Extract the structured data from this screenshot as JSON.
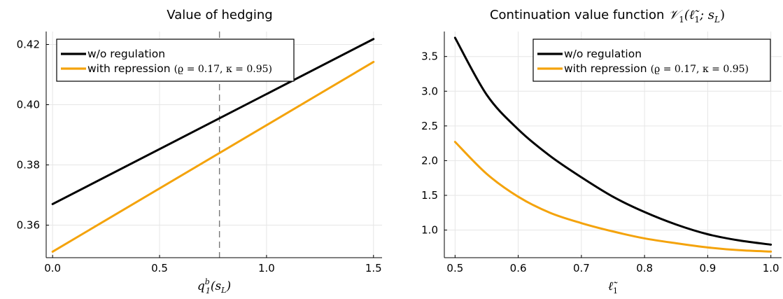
{
  "chart_data": [
    {
      "type": "line",
      "title": "Value of hedging",
      "xlabel": "q_1^b(s_L)",
      "ylabel": "",
      "xlim": [
        -0.03,
        1.54
      ],
      "ylim": [
        0.3492,
        0.4243
      ],
      "xticks": [
        0.0,
        0.5,
        1.0,
        1.5
      ],
      "xtick_labels": [
        "0.0",
        "0.5",
        "1.0",
        "1.5"
      ],
      "yticks": [
        0.36,
        0.38,
        0.4,
        0.42
      ],
      "ytick_labels": [
        "0.36",
        "0.38",
        "0.40",
        "0.42"
      ],
      "grid": true,
      "legend": "top-left",
      "vline": 0.78,
      "series": [
        {
          "name": "w/o regulation",
          "name_math": "",
          "color": "#000000",
          "x": [
            0.0,
            1.5
          ],
          "y": [
            0.367,
            0.4218
          ]
        },
        {
          "name": "with repression",
          "name_math": "(ϱ = 0.17, κ = 0.95)",
          "color": "#f4a30c",
          "x": [
            0.0,
            1.5
          ],
          "y": [
            0.3512,
            0.4142
          ]
        }
      ]
    },
    {
      "type": "line",
      "title": "Continuation value function 𝒱₁(ℓ̃₁; s_L)",
      "xlabel": "ℓ̃₁",
      "ylabel": "",
      "xlim": [
        0.483,
        1.017
      ],
      "ylim": [
        0.602,
        3.86
      ],
      "xticks": [
        0.5,
        0.6,
        0.7,
        0.8,
        0.9,
        1.0
      ],
      "xtick_labels": [
        "0.5",
        "0.6",
        "0.7",
        "0.8",
        "0.9",
        "1.0"
      ],
      "yticks": [
        1.0,
        1.5,
        2.0,
        2.5,
        3.0,
        3.5
      ],
      "ytick_labels": [
        "1.0",
        "1.5",
        "2.0",
        "2.5",
        "3.0",
        "3.5"
      ],
      "grid": true,
      "legend": "top-right",
      "series": [
        {
          "name": "w/o regulation",
          "name_math": "",
          "color": "#000000",
          "x": [
            0.5,
            0.55,
            0.6,
            0.65,
            0.7,
            0.75,
            0.8,
            0.85,
            0.9,
            0.95,
            1.0
          ],
          "y": [
            3.77,
            2.95,
            2.45,
            2.07,
            1.76,
            1.48,
            1.26,
            1.08,
            0.94,
            0.85,
            0.79
          ]
        },
        {
          "name": "with repression",
          "name_math": "(ϱ = 0.17, κ = 0.95)",
          "color": "#f4a30c",
          "x": [
            0.5,
            0.55,
            0.6,
            0.65,
            0.7,
            0.75,
            0.8,
            0.85,
            0.9,
            0.95,
            1.0
          ],
          "y": [
            2.27,
            1.81,
            1.48,
            1.25,
            1.1,
            0.98,
            0.88,
            0.81,
            0.75,
            0.71,
            0.69
          ]
        }
      ]
    }
  ]
}
